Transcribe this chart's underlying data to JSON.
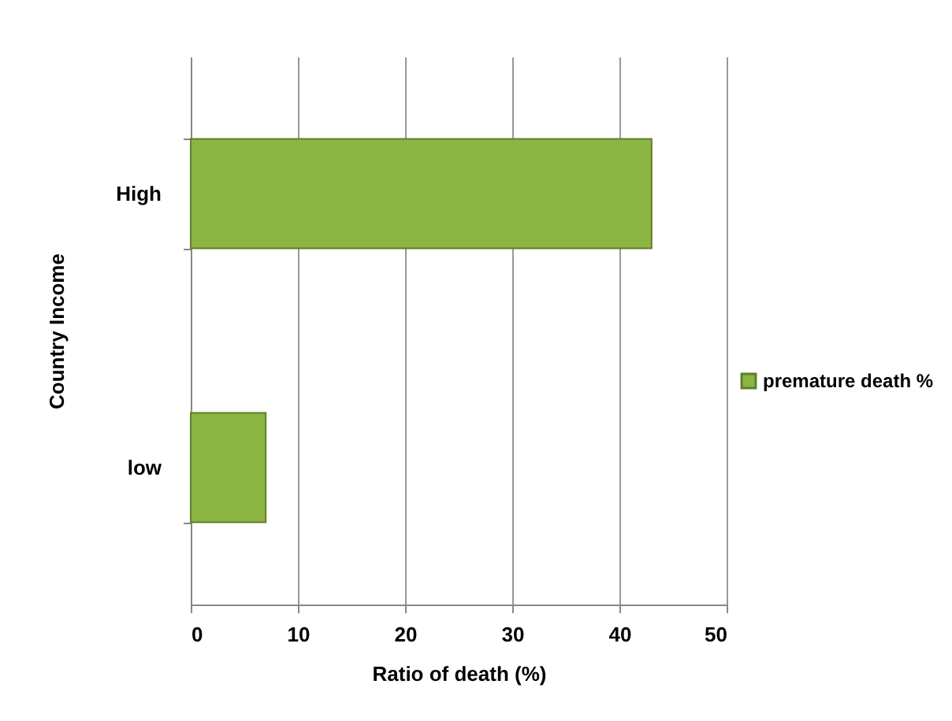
{
  "chart_data": {
    "type": "bar",
    "orientation": "horizontal",
    "xlabel": "Ratio of death (%)",
    "ylabel": "Country Income",
    "categories": [
      "High",
      "low"
    ],
    "series": [
      {
        "name": "premature death %",
        "color": "#8db543",
        "values": [
          43,
          7
        ]
      }
    ],
    "xlim": [
      0,
      50
    ],
    "xticks": [
      0,
      10,
      20,
      30,
      40,
      50
    ],
    "grid": "x",
    "legend": "right"
  }
}
